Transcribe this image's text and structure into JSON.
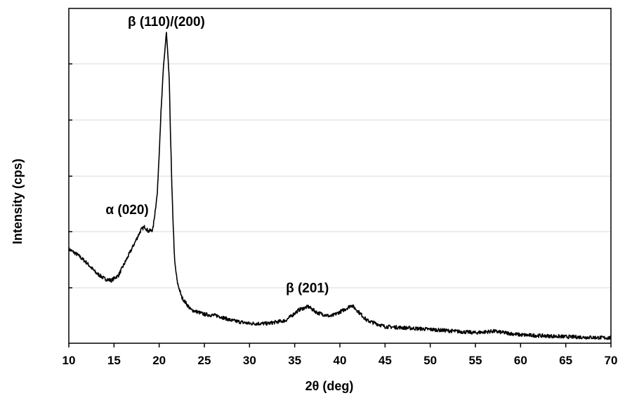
{
  "chart_data": {
    "type": "line",
    "xlabel": "2θ (deg)",
    "ylabel": "Intensity  (cps)",
    "xlim": [
      10,
      70
    ],
    "ylim": [
      0,
      1
    ],
    "x_ticks": [
      10,
      15,
      20,
      25,
      30,
      35,
      40,
      45,
      50,
      55,
      60,
      65,
      70
    ],
    "y_tick_labels_shown": false,
    "grid": "horizontal",
    "legend": "none",
    "annotations": [
      {
        "text": "β (110)/(200)",
        "x": 20.8
      },
      {
        "text": "α (020)",
        "x": 18.4
      },
      {
        "text": "β (201)",
        "x": 36.4
      }
    ],
    "series": [
      {
        "x": [
          10,
          11,
          12,
          13,
          14,
          14.7,
          15.5,
          16.5,
          17.5,
          18,
          18.4,
          18.8,
          19.3,
          19.8,
          20.2,
          20.5,
          20.8,
          21.1,
          21.4,
          21.7,
          22,
          22.5,
          23.5,
          25,
          26.5,
          28,
          30,
          32,
          34,
          35.5,
          36.5,
          37.5,
          39,
          40.5,
          41.3,
          42,
          43,
          45,
          50,
          55,
          57,
          60,
          65,
          70
        ],
        "y": [
          0.297,
          0.278,
          0.252,
          0.22,
          0.2,
          0.195,
          0.212,
          0.27,
          0.33,
          0.36,
          0.37,
          0.355,
          0.36,
          0.48,
          0.74,
          0.9,
          1.0,
          0.86,
          0.5,
          0.26,
          0.19,
          0.14,
          0.1,
          0.085,
          0.08,
          0.065,
          0.055,
          0.055,
          0.065,
          0.1,
          0.11,
          0.09,
          0.078,
          0.1,
          0.115,
          0.095,
          0.065,
          0.045,
          0.036,
          0.025,
          0.03,
          0.018,
          0.012,
          0.008
        ]
      }
    ]
  }
}
